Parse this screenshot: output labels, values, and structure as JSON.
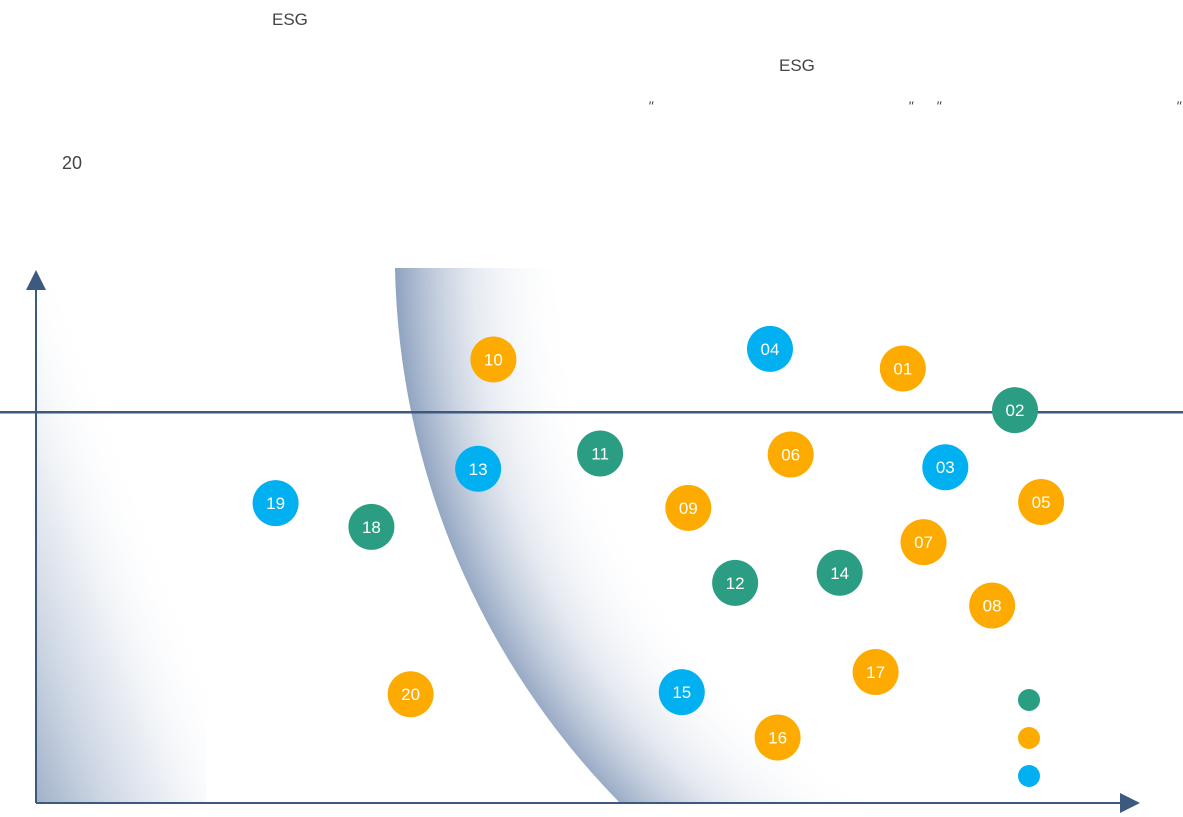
{
  "header": {
    "line1": "ESG",
    "line2": "ESG",
    "line3": "20",
    "quote_marks": [
      "\"",
      "\"",
      "\"",
      "\""
    ]
  },
  "colors": {
    "teal": "#2a9d82",
    "orange": "#fdab00",
    "blue": "#00b0f0",
    "axis": "#3c5a7e",
    "gradient": "#9aacc6"
  },
  "chart_data": {
    "type": "scatter",
    "xlim": [
      0,
      100
    ],
    "ylim": [
      0,
      100
    ],
    "threshold_y": 74,
    "legend": {
      "placement": "bottom-right",
      "colors": [
        "teal",
        "orange",
        "blue"
      ]
    },
    "points": [
      {
        "label": "01",
        "x": 79.6,
        "y": 82.3,
        "color": "orange"
      },
      {
        "label": "02",
        "x": 89.9,
        "y": 74.4,
        "color": "teal"
      },
      {
        "label": "03",
        "x": 83.5,
        "y": 63.6,
        "color": "blue"
      },
      {
        "label": "04",
        "x": 67.4,
        "y": 86.0,
        "color": "blue"
      },
      {
        "label": "05",
        "x": 92.3,
        "y": 57.0,
        "color": "orange"
      },
      {
        "label": "06",
        "x": 69.3,
        "y": 66.0,
        "color": "orange"
      },
      {
        "label": "07",
        "x": 81.5,
        "y": 49.4,
        "color": "orange"
      },
      {
        "label": "08",
        "x": 87.8,
        "y": 37.4,
        "color": "orange"
      },
      {
        "label": "09",
        "x": 59.9,
        "y": 55.9,
        "color": "orange"
      },
      {
        "label": "10",
        "x": 42.0,
        "y": 84.0,
        "color": "orange"
      },
      {
        "label": "11",
        "x": 51.8,
        "y": 66.2,
        "color": "teal"
      },
      {
        "label": "12",
        "x": 64.2,
        "y": 41.7,
        "color": "teal"
      },
      {
        "label": "13",
        "x": 40.6,
        "y": 63.3,
        "color": "blue"
      },
      {
        "label": "14",
        "x": 73.8,
        "y": 43.6,
        "color": "teal"
      },
      {
        "label": "15",
        "x": 59.3,
        "y": 21.0,
        "color": "blue"
      },
      {
        "label": "16",
        "x": 68.1,
        "y": 12.4,
        "color": "orange"
      },
      {
        "label": "17",
        "x": 77.1,
        "y": 24.8,
        "color": "orange"
      },
      {
        "label": "18",
        "x": 30.8,
        "y": 52.3,
        "color": "teal"
      },
      {
        "label": "19",
        "x": 22.0,
        "y": 56.8,
        "color": "blue"
      },
      {
        "label": "20",
        "x": 34.4,
        "y": 20.6,
        "color": "orange"
      }
    ]
  }
}
